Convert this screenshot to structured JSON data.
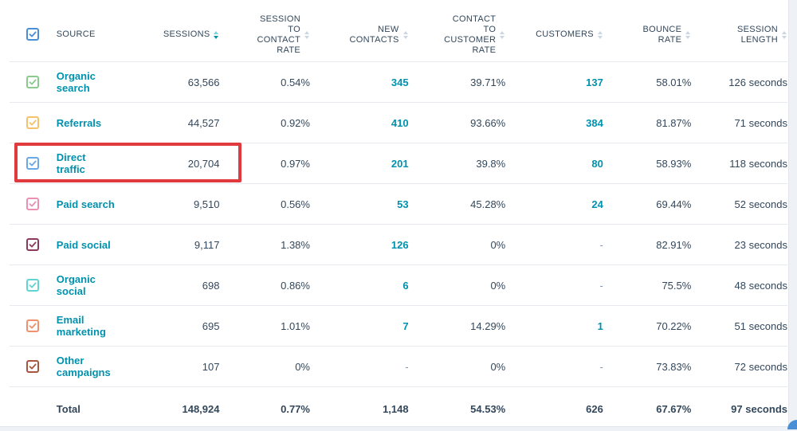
{
  "header": {
    "source": "SOURCE",
    "sessions": "SESSIONS",
    "session_to_contact_rate": "SESSION TO CONTACT RATE",
    "new_contacts": "NEW CONTACTS",
    "contact_to_customer_rate": "CONTACT TO CUSTOMER RATE",
    "customers": "CUSTOMERS",
    "bounce_rate": "BOUNCE RATE",
    "session_length": "SESSION LENGTH"
  },
  "colors": {
    "select_all": "#4a8fd6",
    "link": "#0091ae",
    "highlight": "#e0393e"
  },
  "rows": [
    {
      "source": "Organic search",
      "sessions": "63,566",
      "session_to_contact_rate": "0.54%",
      "new_contacts": "345",
      "contact_to_customer_rate": "39.71%",
      "customers": "137",
      "bounce_rate": "58.01%",
      "session_length": "126 seconds",
      "color": "#8bc98f"
    },
    {
      "source": "Referrals",
      "sessions": "44,527",
      "session_to_contact_rate": "0.92%",
      "new_contacts": "410",
      "contact_to_customer_rate": "93.66%",
      "customers": "384",
      "bounce_rate": "81.87%",
      "session_length": "71 seconds",
      "color": "#f5c26b"
    },
    {
      "source": "Direct traffic",
      "sessions": "20,704",
      "session_to_contact_rate": "0.97%",
      "new_contacts": "201",
      "contact_to_customer_rate": "39.8%",
      "customers": "80",
      "bounce_rate": "58.93%",
      "session_length": "118 seconds",
      "color": "#6aa8e8"
    },
    {
      "source": "Paid search",
      "sessions": "9,510",
      "session_to_contact_rate": "0.56%",
      "new_contacts": "53",
      "contact_to_customer_rate": "45.28%",
      "customers": "24",
      "bounce_rate": "69.44%",
      "session_length": "52 seconds",
      "color": "#ea90b1"
    },
    {
      "source": "Paid social",
      "sessions": "9,117",
      "session_to_contact_rate": "1.38%",
      "new_contacts": "126",
      "contact_to_customer_rate": "0%",
      "customers": "-",
      "bounce_rate": "82.91%",
      "session_length": "23 seconds",
      "color": "#8b3a5e"
    },
    {
      "source": "Organic social",
      "sessions": "698",
      "session_to_contact_rate": "0.86%",
      "new_contacts": "6",
      "contact_to_customer_rate": "0%",
      "customers": "-",
      "bounce_rate": "75.5%",
      "session_length": "48 seconds",
      "color": "#62d3d3"
    },
    {
      "source": "Email marketing",
      "sessions": "695",
      "session_to_contact_rate": "1.01%",
      "new_contacts": "7",
      "contact_to_customer_rate": "14.29%",
      "customers": "1",
      "bounce_rate": "70.22%",
      "session_length": "51 seconds",
      "color": "#f0906e"
    },
    {
      "source": "Other campaigns",
      "sessions": "107",
      "session_to_contact_rate": "0%",
      "new_contacts": "-",
      "contact_to_customer_rate": "0%",
      "customers": "-",
      "bounce_rate": "73.83%",
      "session_length": "72 seconds",
      "color": "#a8563e"
    }
  ],
  "total": {
    "label": "Total",
    "sessions": "148,924",
    "session_to_contact_rate": "0.77%",
    "new_contacts": "1,148",
    "contact_to_customer_rate": "54.53%",
    "customers": "626",
    "bounce_rate": "67.67%",
    "session_length": "97 seconds"
  }
}
